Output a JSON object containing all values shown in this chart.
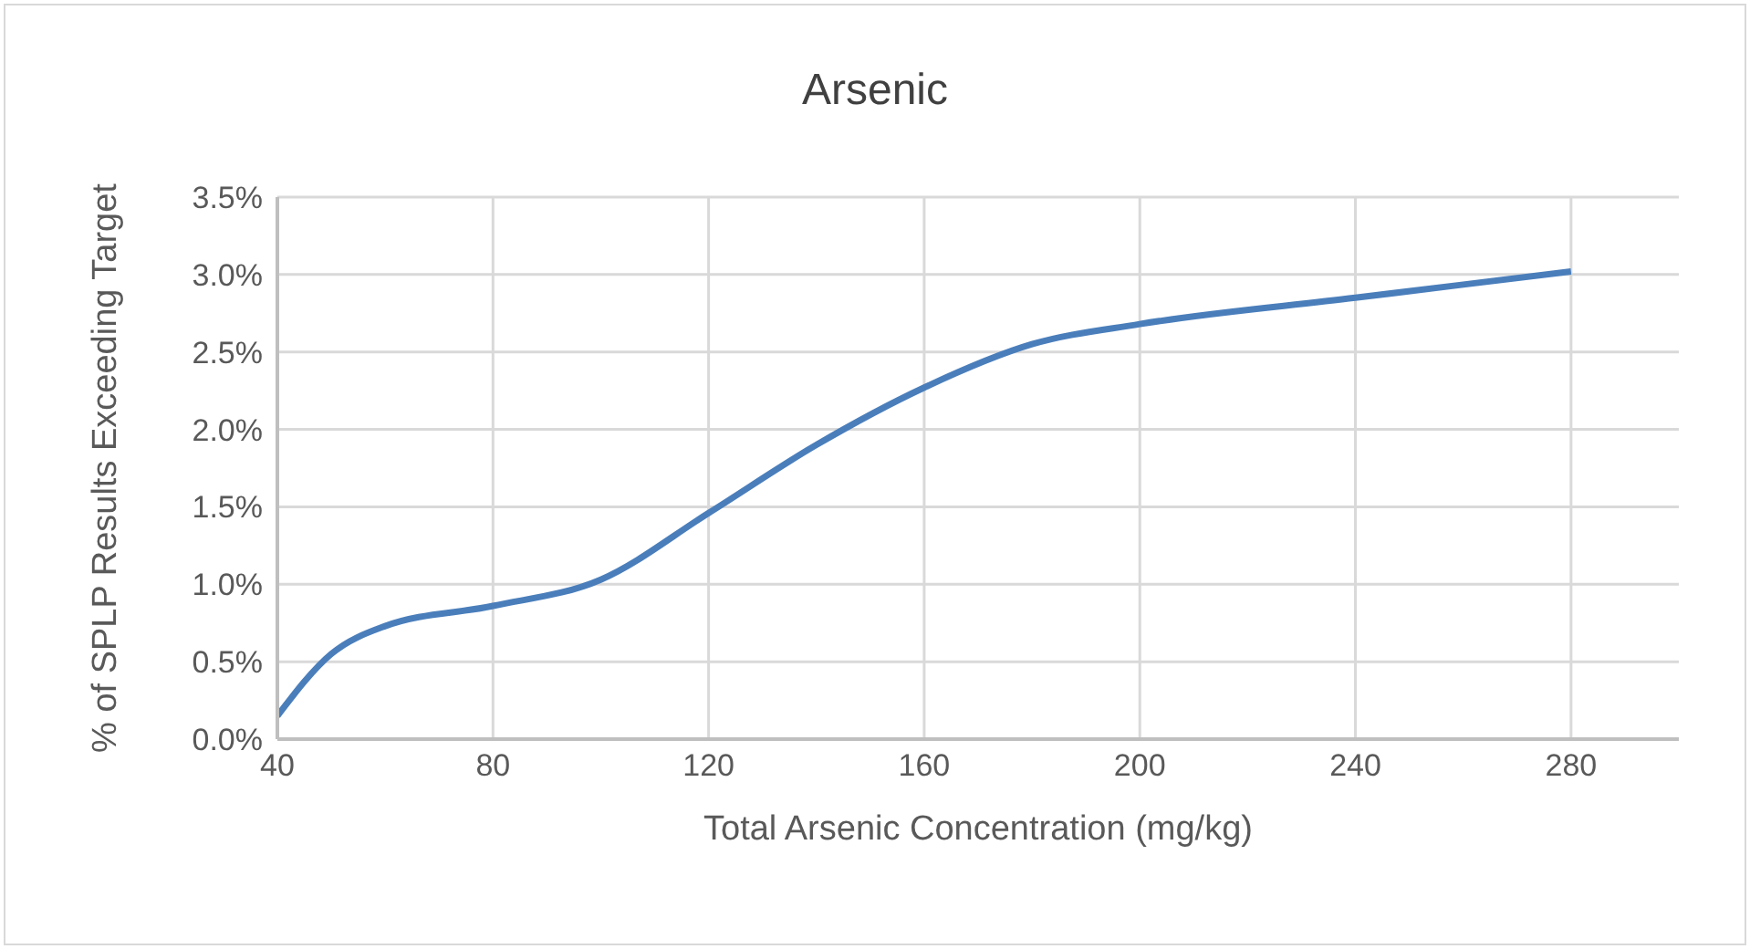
{
  "chart_data": {
    "type": "line",
    "title": "Arsenic",
    "xlabel": "Total Arsenic Concentration (mg/kg)",
    "ylabel": "% of SPLP Results Exceeding Target",
    "x": [
      40,
      50,
      60,
      80,
      100,
      120,
      140,
      160,
      180,
      200,
      240,
      280
    ],
    "series": [
      {
        "color": "#4a7ebb",
        "values": [
          0.15,
          0.55,
          0.73,
          0.86,
          1.03,
          1.46,
          1.9,
          2.27,
          2.55,
          2.68,
          2.85,
          3.02
        ]
      }
    ],
    "xlim": [
      40,
      300
    ],
    "xticks": [
      40,
      80,
      120,
      160,
      200,
      240,
      280
    ],
    "ylim": [
      0,
      3.5
    ],
    "yticks": [
      {
        "value": 0,
        "label": "0.0%"
      },
      {
        "value": 0.5,
        "label": "0.5%"
      },
      {
        "value": 1,
        "label": "1.0%"
      },
      {
        "value": 1.5,
        "label": "1.5%"
      },
      {
        "value": 2,
        "label": "2.0%"
      },
      {
        "value": 2.5,
        "label": "2.5%"
      },
      {
        "value": 3,
        "label": "3.0%"
      },
      {
        "value": 3.5,
        "label": "3.5%"
      }
    ],
    "grid": true,
    "marker": "none",
    "line_style": "solid",
    "legend": false
  }
}
